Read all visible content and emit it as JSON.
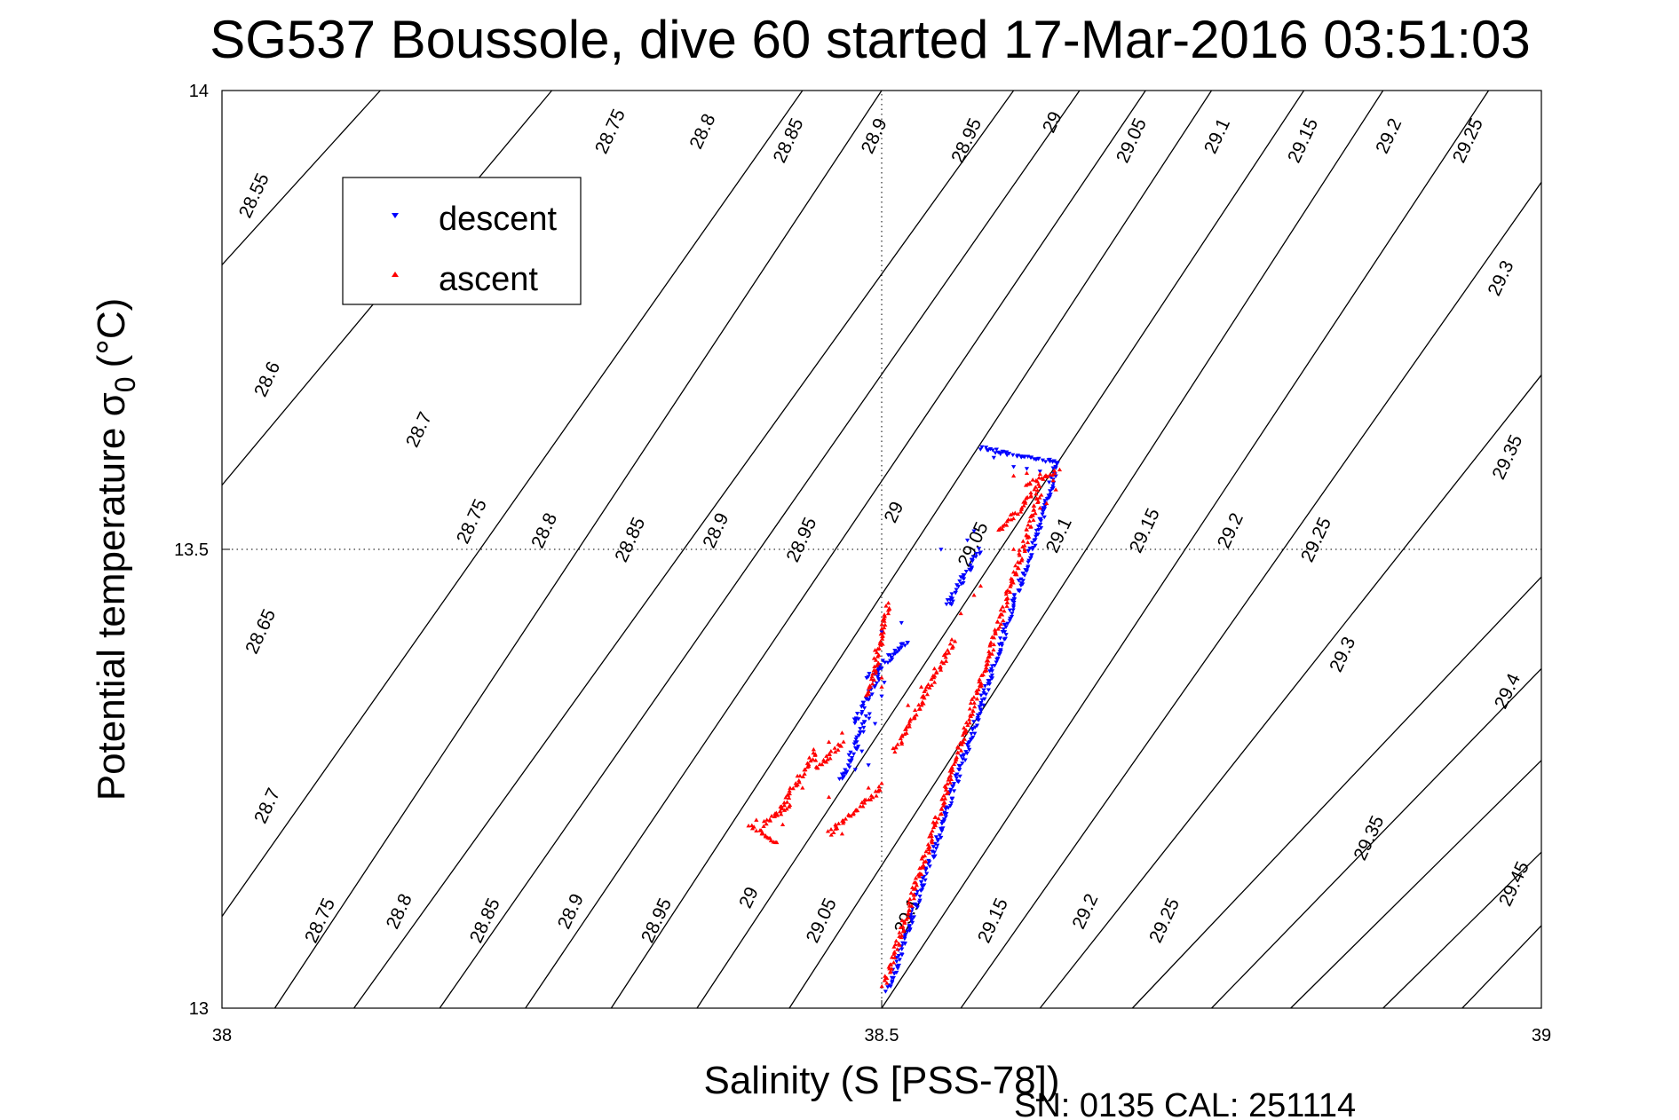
{
  "chart_data": {
    "type": "scatter",
    "title": "SG537 Boussole, dive 60 started 17-Mar-2016 03:51:03",
    "xlabel": "Salinity (S [PSS-78])",
    "ylabel_main": "Potential temperature σ",
    "ylabel_sub": "0",
    "ylabel_unit": "(°C)",
    "xlim": [
      38,
      39
    ],
    "ylim": [
      13,
      14
    ],
    "xticks": [
      38,
      38.5,
      39
    ],
    "xtick_labels": [
      "38",
      "38.5",
      "39"
    ],
    "yticks": [
      13,
      13.5,
      14
    ],
    "ytick_labels": [
      "13",
      "13.5",
      "14"
    ],
    "grid": true,
    "legend_position": "top-left",
    "series": [
      {
        "name": "descent",
        "color": "#0000ff",
        "marker": "triangle-down",
        "ranges": [
          [
            38.505,
            13.02,
            38.625,
            13.55
          ],
          [
            38.625,
            13.55,
            38.632,
            13.595
          ],
          [
            38.632,
            13.595,
            38.575,
            13.61
          ],
          [
            38.55,
            13.44,
            38.575,
            13.5
          ],
          [
            38.47,
            13.25,
            38.49,
            13.32
          ],
          [
            38.48,
            13.31,
            38.5,
            13.37
          ],
          [
            38.49,
            13.36,
            38.52,
            13.4
          ]
        ],
        "points": [
          [
            38.632,
            13.58
          ],
          [
            38.63,
            13.567
          ],
          [
            38.628,
            13.56
          ],
          [
            38.62,
            13.585
          ],
          [
            38.61,
            13.588
          ],
          [
            38.6,
            13.59
          ],
          [
            38.59,
            13.604
          ],
          [
            38.585,
            13.6
          ],
          [
            38.57,
            13.52
          ],
          [
            38.565,
            13.51
          ],
          [
            38.56,
            13.47
          ],
          [
            38.553,
            13.44
          ],
          [
            38.55,
            13.445
          ],
          [
            38.545,
            13.5
          ],
          [
            38.47,
            13.255
          ],
          [
            38.468,
            13.25
          ],
          [
            38.48,
            13.26
          ],
          [
            38.49,
            13.265
          ],
          [
            38.485,
            13.28
          ],
          [
            38.48,
            13.29
          ],
          [
            38.495,
            13.31
          ],
          [
            38.5,
            13.34
          ],
          [
            38.502,
            13.355
          ],
          [
            38.498,
            13.37
          ],
          [
            38.505,
            13.385
          ],
          [
            38.51,
            13.39
          ],
          [
            38.5,
            13.41
          ],
          [
            38.515,
            13.42
          ]
        ]
      },
      {
        "name": "ascent",
        "color": "#ff0000",
        "marker": "triangle-up",
        "ranges": [
          [
            38.502,
            13.025,
            38.62,
            13.56
          ],
          [
            38.59,
            13.52,
            38.62,
            13.57
          ],
          [
            38.61,
            13.57,
            38.633,
            13.586
          ],
          [
            38.41,
            13.2,
            38.43,
            13.22
          ],
          [
            38.4,
            13.2,
            38.42,
            13.18
          ],
          [
            38.42,
            13.21,
            38.45,
            13.28
          ],
          [
            38.45,
            13.26,
            38.47,
            13.29
          ],
          [
            38.46,
            13.19,
            38.5,
            13.24
          ],
          [
            38.49,
            13.34,
            38.505,
            13.44
          ],
          [
            38.51,
            13.28,
            38.555,
            13.4
          ]
        ],
        "points": [
          [
            38.6,
            13.58
          ],
          [
            38.61,
            13.583
          ],
          [
            38.62,
            13.582
          ],
          [
            38.63,
            13.575
          ],
          [
            38.632,
            13.565
          ],
          [
            38.625,
            13.55
          ],
          [
            38.62,
            13.545
          ],
          [
            38.405,
            13.205
          ],
          [
            38.41,
            13.19
          ],
          [
            38.415,
            13.185
          ],
          [
            38.425,
            13.2
          ],
          [
            38.44,
            13.24
          ],
          [
            38.45,
            13.27
          ],
          [
            38.46,
            13.29
          ],
          [
            38.47,
            13.3
          ],
          [
            38.46,
            13.23
          ],
          [
            38.465,
            13.2
          ],
          [
            38.47,
            13.19
          ],
          [
            38.48,
            13.215
          ],
          [
            38.49,
            13.24
          ],
          [
            38.5,
            13.245
          ],
          [
            38.505,
            13.43
          ],
          [
            38.495,
            13.39
          ],
          [
            38.5,
            13.36
          ],
          [
            38.5,
            13.35
          ],
          [
            38.52,
            13.33
          ],
          [
            38.53,
            13.35
          ],
          [
            38.54,
            13.37
          ],
          [
            38.55,
            13.39
          ],
          [
            38.56,
            13.43
          ],
          [
            38.57,
            13.45
          ],
          [
            38.575,
            13.46
          ],
          [
            38.6,
            13.5
          ]
        ]
      }
    ],
    "contour_lines": [
      {
        "start": [
          38,
          13.81
        ],
        "end": [
          38.12,
          14
        ]
      },
      {
        "start": [
          38,
          13.57
        ],
        "end": [
          38.25,
          14
        ]
      },
      {
        "start": [
          38,
          13.1
        ],
        "end": [
          38.44,
          14
        ]
      },
      {
        "start": [
          38.04,
          13
        ],
        "end": [
          38.5,
          14
        ]
      },
      {
        "start": [
          38.1,
          13
        ],
        "end": [
          38.6,
          14
        ]
      },
      {
        "start": [
          38.165,
          13
        ],
        "end": [
          38.65,
          14
        ]
      },
      {
        "start": [
          38.23,
          13
        ],
        "end": [
          38.7,
          14
        ]
      },
      {
        "start": [
          38.295,
          13
        ],
        "end": [
          38.75,
          14
        ]
      },
      {
        "start": [
          38.36,
          13
        ],
        "end": [
          38.82,
          14
        ]
      },
      {
        "start": [
          38.43,
          13
        ],
        "end": [
          38.88,
          14
        ]
      },
      {
        "start": [
          38.5,
          13
        ],
        "end": [
          38.96,
          14
        ]
      },
      {
        "start": [
          38.56,
          13
        ],
        "end": [
          39.0,
          13.9
        ]
      },
      {
        "start": [
          38.62,
          13
        ],
        "end": [
          39.0,
          13.69
        ]
      },
      {
        "start": [
          38.69,
          13
        ],
        "end": [
          39.0,
          13.47
        ]
      },
      {
        "start": [
          38.75,
          13
        ],
        "end": [
          39.0,
          13.37
        ]
      },
      {
        "start": [
          38.81,
          13
        ],
        "end": [
          39.0,
          13.27
        ]
      },
      {
        "start": [
          38.88,
          13
        ],
        "end": [
          39.0,
          13.17
        ]
      },
      {
        "start": [
          38.94,
          13
        ],
        "end": [
          39.0,
          13.09
        ]
      }
    ],
    "contour_labels": [
      {
        "text": "28.55",
        "x": 38.025,
        "y": 13.885
      },
      {
        "text": "28.6",
        "x": 38.035,
        "y": 13.685
      },
      {
        "text": "28.65",
        "x": 38.03,
        "y": 13.41
      },
      {
        "text": "28.7",
        "x": 38.035,
        "y": 13.22
      },
      {
        "text": "28.75",
        "x": 38.075,
        "y": 13.095
      },
      {
        "text": "28.7",
        "x": 38.15,
        "y": 13.63
      },
      {
        "text": "28.75",
        "x": 38.19,
        "y": 13.53
      },
      {
        "text": "28.8",
        "x": 38.245,
        "y": 13.52
      },
      {
        "text": "28.85",
        "x": 38.31,
        "y": 13.51
      },
      {
        "text": "28.9",
        "x": 38.375,
        "y": 13.52
      },
      {
        "text": "28.95",
        "x": 38.44,
        "y": 13.51
      },
      {
        "text": "29",
        "x": 38.51,
        "y": 13.54
      },
      {
        "text": "29.05",
        "x": 38.57,
        "y": 13.505
      },
      {
        "text": "29.1",
        "x": 38.635,
        "y": 13.515
      },
      {
        "text": "29.15",
        "x": 38.7,
        "y": 13.52
      },
      {
        "text": "29.2",
        "x": 38.765,
        "y": 13.52
      },
      {
        "text": "29.25",
        "x": 38.83,
        "y": 13.51
      },
      {
        "text": "28.75",
        "x": 38.295,
        "y": 13.955
      },
      {
        "text": "28.8",
        "x": 38.365,
        "y": 13.955
      },
      {
        "text": "28.85",
        "x": 38.43,
        "y": 13.945
      },
      {
        "text": "28.9",
        "x": 38.495,
        "y": 13.95
      },
      {
        "text": "28.95",
        "x": 38.565,
        "y": 13.945
      },
      {
        "text": "29",
        "x": 38.63,
        "y": 13.965
      },
      {
        "text": "29.05",
        "x": 38.69,
        "y": 13.945
      },
      {
        "text": "29.1",
        "x": 38.755,
        "y": 13.95
      },
      {
        "text": "29.15",
        "x": 38.82,
        "y": 13.945
      },
      {
        "text": "29.2",
        "x": 38.885,
        "y": 13.95
      },
      {
        "text": "29.25",
        "x": 38.945,
        "y": 13.945
      },
      {
        "text": "29.3",
        "x": 38.97,
        "y": 13.795
      },
      {
        "text": "29.35",
        "x": 38.975,
        "y": 13.6
      },
      {
        "text": "29.3",
        "x": 38.85,
        "y": 13.385
      },
      {
        "text": "29.4",
        "x": 38.975,
        "y": 13.345
      },
      {
        "text": "29.35",
        "x": 38.87,
        "y": 13.185
      },
      {
        "text": "29.45",
        "x": 38.98,
        "y": 13.135
      },
      {
        "text": "28.8",
        "x": 38.135,
        "y": 13.105
      },
      {
        "text": "28.85",
        "x": 38.2,
        "y": 13.095
      },
      {
        "text": "28.9",
        "x": 38.265,
        "y": 13.105
      },
      {
        "text": "28.95",
        "x": 38.33,
        "y": 13.095
      },
      {
        "text": "29",
        "x": 38.4,
        "y": 13.12
      },
      {
        "text": "29.05",
        "x": 38.455,
        "y": 13.095
      },
      {
        "text": "29.1",
        "x": 38.52,
        "y": 13.1
      },
      {
        "text": "29.15",
        "x": 38.585,
        "y": 13.095
      },
      {
        "text": "29.2",
        "x": 38.655,
        "y": 13.105
      },
      {
        "text": "29.25",
        "x": 38.715,
        "y": 13.095
      }
    ]
  },
  "footer": "SN: 0135  CAL: 251114"
}
